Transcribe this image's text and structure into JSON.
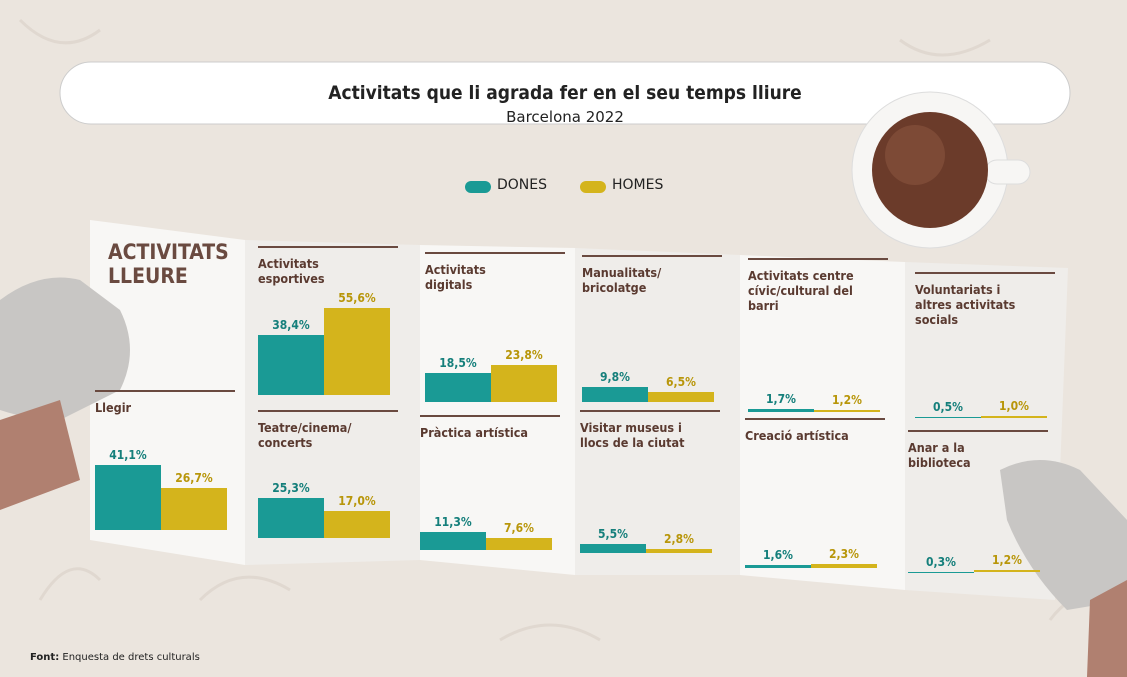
{
  "chart_data": {
    "type": "bar",
    "title": "Activitats que li agrada fer en el seu temps lliure",
    "subtitle": "Barcelona 2022",
    "panel_title": "ACTIVITATS LLEURE",
    "categories": [
      "Llegir",
      "Activitats esportives",
      "Teatre/cinema/ concerts",
      "Activitats digitals",
      "Pràctica artística",
      "Manualitats/ bricolatge",
      "Visitar museus i llocs de la ciutat",
      "Activitats centre cívic/cultural del barri",
      "Creació artística",
      "Voluntariats i altres activitats socials",
      "Anar a la biblioteca"
    ],
    "series": [
      {
        "name": "DONES",
        "color": "#1a9a95",
        "values": [
          41.1,
          38.4,
          25.3,
          18.5,
          11.3,
          9.8,
          5.5,
          1.7,
          1.6,
          0.5,
          0.3
        ],
        "value_labels": [
          "41,1%",
          "38,4%",
          "25,3%",
          "18,5%",
          "11,3%",
          "9,8%",
          "5,5%",
          "1,7%",
          "1,6%",
          "0,5%",
          "0,3%"
        ]
      },
      {
        "name": "HOMES",
        "color": "#d4b41c",
        "values": [
          26.7,
          55.6,
          17.0,
          23.8,
          7.6,
          6.5,
          2.8,
          1.2,
          2.3,
          1.0,
          1.2
        ],
        "value_labels": [
          "26,7%",
          "55,6%",
          "17,0%",
          "23,8%",
          "7,6%",
          "6,5%",
          "2,8%",
          "1,2%",
          "2,3%",
          "1,0%",
          "1,2%"
        ]
      }
    ],
    "source_label": "Font:",
    "source": "Enquesta de drets culturals"
  }
}
